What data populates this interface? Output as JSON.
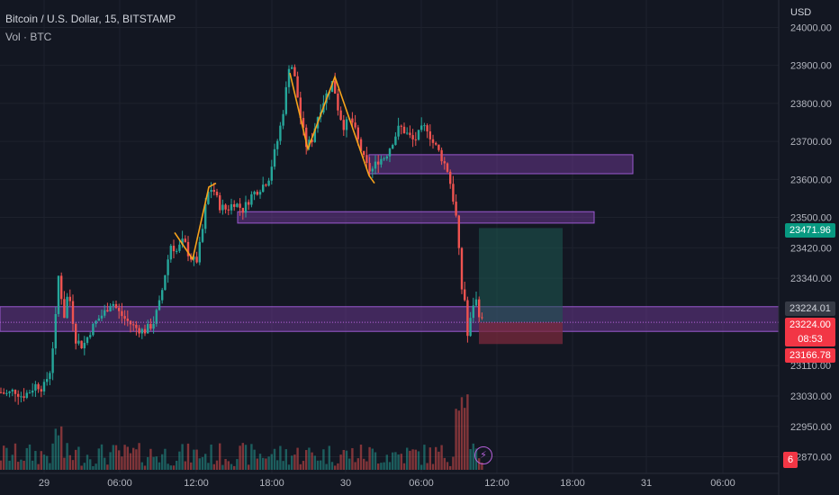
{
  "legend": {
    "symbol": "Bitcoin / U.S. Dollar, 15, BITSTAMP",
    "volume": "Vol · BTC"
  },
  "axis": {
    "currency": "USD",
    "price_ticks": [
      "24000.00",
      "23900.00",
      "23800.00",
      "23700.00",
      "23600.00",
      "23500.00",
      "23420.00",
      "23340.00",
      "23224.01",
      "23110.00",
      "23030.00",
      "22950.00",
      "22870.00"
    ],
    "time_ticks": [
      "29",
      "06:00",
      "12:00",
      "18:00",
      "30",
      "06:00",
      "12:00",
      "18:00",
      "31",
      "06:00"
    ]
  },
  "tags": {
    "target": "23471.96",
    "last_close": "23224.01",
    "current": "23224.00",
    "countdown": "08:53",
    "stop": "23166.78",
    "alert_count": "6"
  },
  "colors": {
    "background": "#131722",
    "up": "#26a69a",
    "down": "#ef5350",
    "zone": "#7b3fa3",
    "zigzag": "#f7a21b",
    "target_box": "#1e5a52",
    "stop_box": "#7a2a3c"
  },
  "chart_data": {
    "type": "candlestick",
    "title": "Bitcoin / U.S. Dollar, 15, BITSTAMP",
    "ylabel": "USD",
    "ylim": [
      22850,
      24020
    ],
    "x_labels": [
      "29",
      "06:00",
      "12:00",
      "18:00",
      "30",
      "06:00",
      "12:00",
      "18:00",
      "31",
      "06:00"
    ],
    "close_path": [
      [
        0,
        23040
      ],
      [
        8,
        23035
      ],
      [
        16,
        23045
      ],
      [
        24,
        23030
      ],
      [
        32,
        23040
      ],
      [
        40,
        23060
      ],
      [
        48,
        23050
      ],
      [
        56,
        23100
      ],
      [
        62,
        23240
      ],
      [
        66,
        23380
      ],
      [
        70,
        23220
      ],
      [
        76,
        23310
      ],
      [
        84,
        23180
      ],
      [
        92,
        23160
      ],
      [
        100,
        23200
      ],
      [
        108,
        23230
      ],
      [
        116,
        23250
      ],
      [
        124,
        23280
      ],
      [
        132,
        23250
      ],
      [
        140,
        23230
      ],
      [
        150,
        23210
      ],
      [
        160,
        23200
      ],
      [
        170,
        23220
      ],
      [
        178,
        23280
      ],
      [
        184,
        23360
      ],
      [
        190,
        23430
      ],
      [
        196,
        23410
      ],
      [
        204,
        23440
      ],
      [
        210,
        23400
      ],
      [
        218,
        23380
      ],
      [
        224,
        23450
      ],
      [
        230,
        23560
      ],
      [
        236,
        23580
      ],
      [
        244,
        23530
      ],
      [
        252,
        23520
      ],
      [
        260,
        23540
      ],
      [
        270,
        23520
      ],
      [
        280,
        23560
      ],
      [
        290,
        23580
      ],
      [
        298,
        23600
      ],
      [
        304,
        23660
      ],
      [
        310,
        23720
      ],
      [
        316,
        23800
      ],
      [
        322,
        23920
      ],
      [
        328,
        23860
      ],
      [
        334,
        23760
      ],
      [
        340,
        23690
      ],
      [
        346,
        23700
      ],
      [
        352,
        23760
      ],
      [
        358,
        23800
      ],
      [
        364,
        23830
      ],
      [
        370,
        23860
      ],
      [
        376,
        23780
      ],
      [
        382,
        23740
      ],
      [
        390,
        23760
      ],
      [
        398,
        23700
      ],
      [
        406,
        23640
      ],
      [
        412,
        23620
      ],
      [
        420,
        23650
      ],
      [
        428,
        23660
      ],
      [
        436,
        23700
      ],
      [
        444,
        23740
      ],
      [
        452,
        23720
      ],
      [
        460,
        23700
      ],
      [
        468,
        23730
      ],
      [
        474,
        23740
      ],
      [
        480,
        23700
      ],
      [
        486,
        23680
      ],
      [
        492,
        23650
      ],
      [
        498,
        23620
      ],
      [
        504,
        23540
      ],
      [
        508,
        23480
      ],
      [
        512,
        23320
      ],
      [
        516,
        23290
      ],
      [
        520,
        23170
      ],
      [
        524,
        23260
      ],
      [
        528,
        23290
      ],
      [
        532,
        23250
      ],
      [
        536,
        23224
      ]
    ],
    "zones": [
      {
        "from": 23265,
        "to": 23200
      },
      {
        "from": 23515,
        "to": 23485
      },
      {
        "from": 23665,
        "to": 23615
      }
    ],
    "position": {
      "entry": 23224,
      "target": 23471.96,
      "stop": 23166.78
    }
  }
}
